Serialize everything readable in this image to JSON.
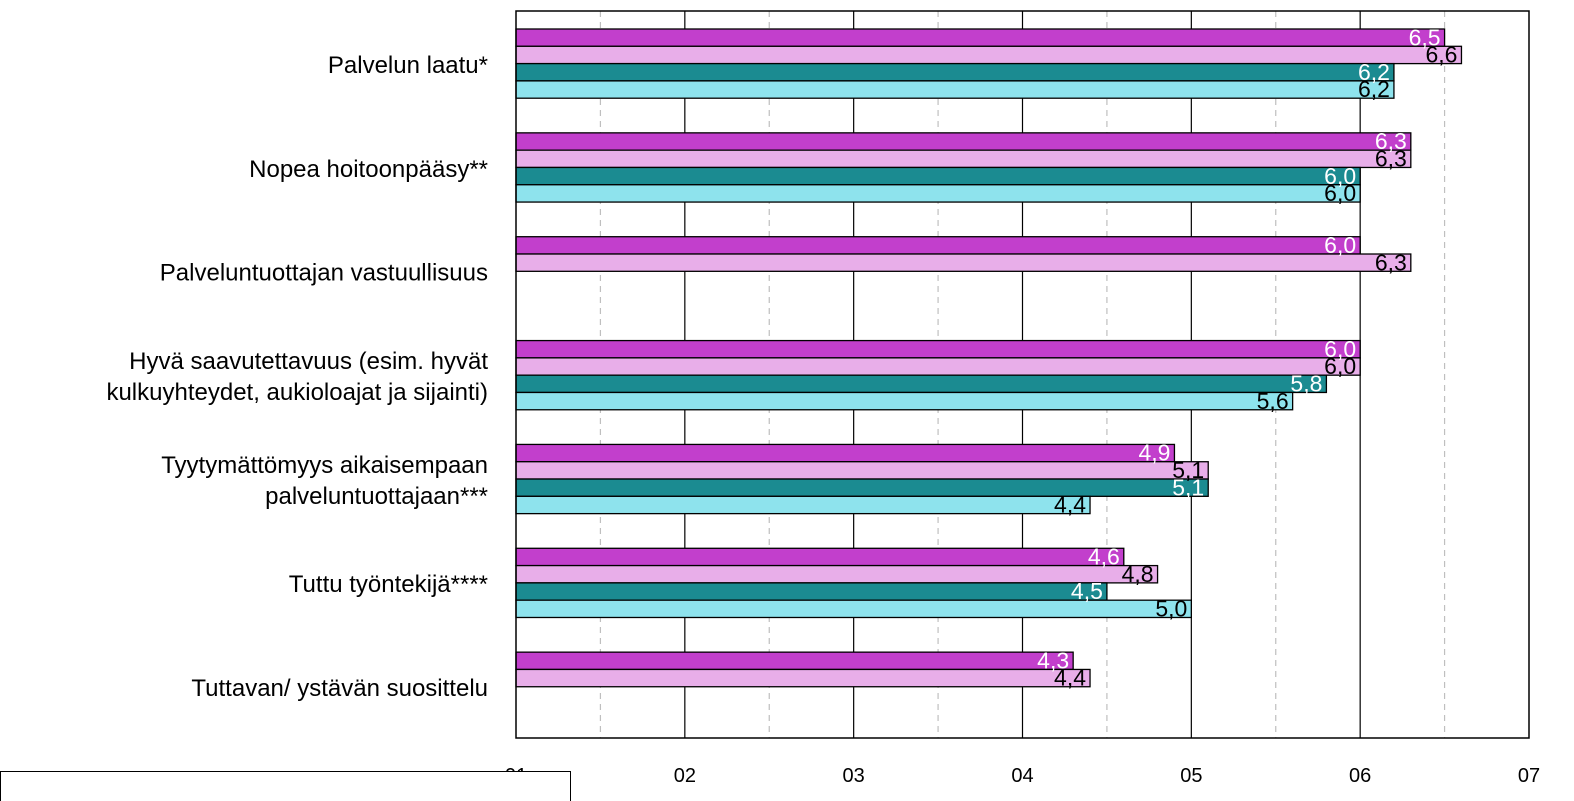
{
  "chart_data": {
    "type": "bar",
    "orientation": "horizontal",
    "categories": [
      "Palvelun laatu*",
      "Nopea hoitoonpääsy**",
      "Palveluntuottajan vastuullisuus",
      "Hyvä saavutettavuus (esim. hyvät kulkuyhteydet, aukioloajat ja sijainti)",
      "Tyytymättömyys aikaisempaan palveluntuottajaan***",
      "Tuttu työntekijä****",
      "Tuttavan/ ystävän suosittelu"
    ],
    "category_lines": [
      [
        "Palvelun laatu*"
      ],
      [
        "Nopea hoitoonpääsy**"
      ],
      [
        "Palveluntuottajan vastuullisuus"
      ],
      [
        "Hyvä saavutettavuus (esim. hyvät",
        "kulkuyhteydet, aukioloajat ja sijainti)"
      ],
      [
        "Tyytymättömyys aikaisempaan",
        "palveluntuottajaan***"
      ],
      [
        "Tuttu työntekijä****"
      ],
      [
        "Tuttavan/ ystävän suosittelu"
      ]
    ],
    "series": [
      {
        "values": [
          6.5,
          6.3,
          6.0,
          6.0,
          4.9,
          4.6,
          4.3
        ],
        "labels": [
          "6,5",
          "6,3",
          "6,0",
          "6,0",
          "4,9",
          "4,6",
          "4,3"
        ],
        "color": "#c23fcc",
        "label_color": "#ffffff"
      },
      {
        "values": [
          6.6,
          6.3,
          6.3,
          6.0,
          5.1,
          4.8,
          4.4
        ],
        "labels": [
          "6,6",
          "6,3",
          "6,3",
          "6,0",
          "5,1",
          "4,8",
          "4,4"
        ],
        "color": "#e8aee9",
        "label_color": "#000000"
      },
      {
        "values": [
          6.2,
          6.0,
          null,
          5.8,
          5.1,
          4.5,
          null
        ],
        "labels": [
          "6,2",
          "6,0",
          "",
          "5,8",
          "5,1",
          "4,5",
          ""
        ],
        "color": "#1b8b91",
        "label_color": "#ffffff"
      },
      {
        "values": [
          6.2,
          6.0,
          null,
          5.6,
          4.4,
          5.0,
          null
        ],
        "labels": [
          "6,2",
          "6,0",
          "",
          "5,6",
          "4,4",
          "5,0",
          ""
        ],
        "color": "#8ee3ed",
        "label_color": "#000000"
      }
    ],
    "xlim": [
      1,
      7
    ],
    "x_ticks": [
      1,
      2,
      3,
      4,
      5,
      6,
      7
    ],
    "x_tick_labels": [
      "01",
      "02",
      "03",
      "04",
      "05",
      "06",
      "07"
    ],
    "grid": "vertical major solid, minor dashed",
    "legend": "bottom-left (cut off)"
  }
}
